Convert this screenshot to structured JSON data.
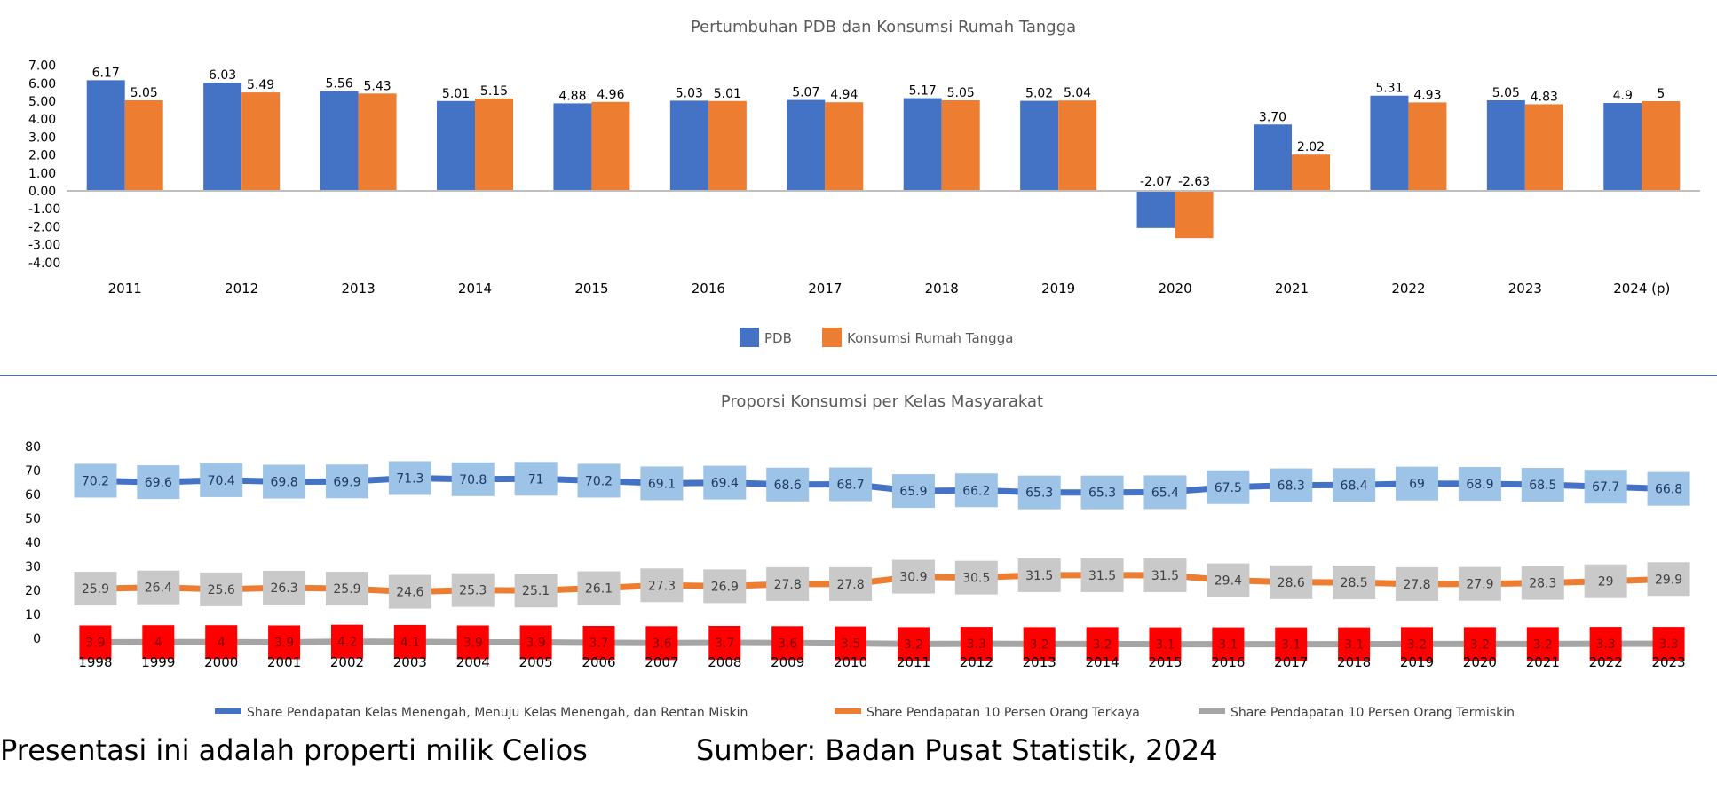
{
  "colors": {
    "pdb": "#4472C4",
    "konsumsi": "#ED7D31",
    "line_middle": "#4472C4",
    "line_rich": "#ED7D31",
    "line_poor": "#A5A5A5",
    "label_middle_bg": "#9DC3E6",
    "label_rich_bg": "#C9C9C9",
    "label_poor_bg": "#FF0000",
    "divider": "#4472C4",
    "axis": "#595959"
  },
  "footer": {
    "left": "Presentasi ini adalah properti milik Celios",
    "right": "Sumber: Badan Pusat Statistik, 2024"
  },
  "chart_data": [
    {
      "type": "bar",
      "title": "Pertumbuhan PDB dan Konsumsi Rumah Tangga",
      "categories": [
        "2011",
        "2012",
        "2013",
        "2014",
        "2015",
        "2016",
        "2017",
        "2018",
        "2019",
        "2020",
        "2021",
        "2022",
        "2023",
        "2024 (p)"
      ],
      "series": [
        {
          "name": "PDB",
          "color": "#4472C4",
          "values": [
            6.17,
            6.03,
            5.56,
            5.01,
            4.88,
            5.03,
            5.07,
            5.17,
            5.02,
            -2.07,
            3.7,
            5.31,
            5.05,
            4.9
          ],
          "labels": [
            "6.17",
            "6.03",
            "5.56",
            "5.01",
            "4.88",
            "5.03",
            "5.07",
            "5.17",
            "5.02",
            "-2.07",
            "3.70",
            "5.31",
            "5.05",
            "4.9"
          ]
        },
        {
          "name": "Konsumsi Rumah Tangga",
          "color": "#ED7D31",
          "values": [
            5.05,
            5.49,
            5.43,
            5.15,
            4.96,
            5.01,
            4.94,
            5.05,
            5.04,
            -2.63,
            2.02,
            4.93,
            4.83,
            5
          ],
          "labels": [
            "5.05",
            "5.49",
            "5.43",
            "5.15",
            "4.96",
            "5.01",
            "4.94",
            "5.05",
            "5.04",
            "-2.63",
            "2.02",
            "4.93",
            "4.83",
            "5"
          ]
        }
      ],
      "ylim": [
        -4,
        7
      ],
      "yticks": [
        "7.00",
        "6.00",
        "5.00",
        "4.00",
        "3.00",
        "2.00",
        "1.00",
        "0.00",
        "-1.00",
        "-2.00",
        "-3.00",
        "-4.00"
      ],
      "legend": "bottom"
    },
    {
      "type": "line",
      "title": "Proporsi Konsumsi per Kelas Masyarakat",
      "categories": [
        "1998",
        "1999",
        "2000",
        "2001",
        "2002",
        "2003",
        "2004",
        "2005",
        "2006",
        "2007",
        "2008",
        "2009",
        "2010",
        "2011",
        "2012",
        "2013",
        "2014",
        "2015",
        "2016",
        "2017",
        "2018",
        "2019",
        "2020",
        "2021",
        "2022",
        "2023"
      ],
      "series": [
        {
          "name": "Share Pendapatan Kelas Menengah, Menuju Kelas Menengah, dan Rentan Miskin",
          "color": "#4472C4",
          "values": [
            70.2,
            69.6,
            70.4,
            69.8,
            69.9,
            71.3,
            70.8,
            71,
            70.2,
            69.1,
            69.4,
            68.6,
            68.7,
            65.9,
            66.2,
            65.3,
            65.3,
            65.4,
            67.5,
            68.3,
            68.4,
            69,
            68.9,
            68.5,
            67.7,
            66.8
          ]
        },
        {
          "name": "Share Pendapatan 10 Persen Orang Terkaya",
          "color": "#ED7D31",
          "values": [
            25.9,
            26.4,
            25.6,
            26.3,
            25.9,
            24.6,
            25.3,
            25.1,
            26.1,
            27.3,
            26.9,
            27.8,
            27.8,
            30.9,
            30.5,
            31.5,
            31.5,
            31.5,
            29.4,
            28.6,
            28.5,
            27.8,
            27.9,
            28.3,
            29,
            29.9
          ]
        },
        {
          "name": "Share Pendapatan 10 Persen Orang Termiskin",
          "color": "#A5A5A5",
          "values": [
            3.9,
            4,
            4,
            3.9,
            4.2,
            4.1,
            3.9,
            3.9,
            3.7,
            3.6,
            3.7,
            3.6,
            3.5,
            3.2,
            3.3,
            3.2,
            3.2,
            3.1,
            3.1,
            3.1,
            3.1,
            3.2,
            3.2,
            3.2,
            3.3,
            3.3
          ]
        }
      ],
      "ylim": [
        0,
        80
      ],
      "yticks": [
        "80",
        "70",
        "60",
        "50",
        "40",
        "30",
        "20",
        "10",
        "0"
      ],
      "legend": "bottom"
    }
  ]
}
